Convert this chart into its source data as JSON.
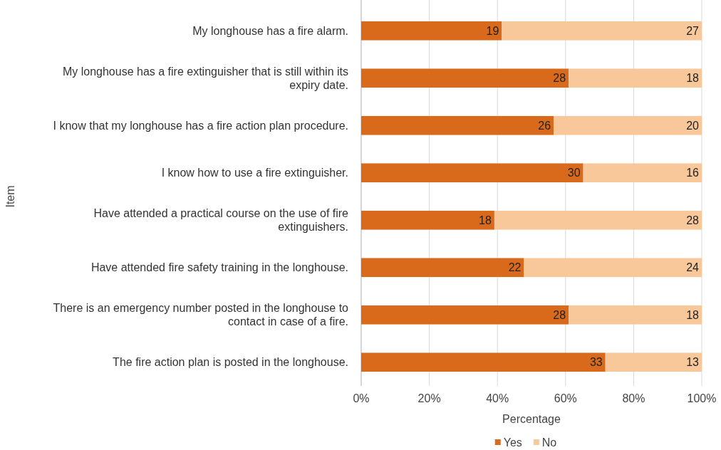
{
  "chart_data": {
    "type": "bar",
    "orientation": "horizontal",
    "stacked": true,
    "xlabel": "Percentage",
    "ylabel": "Item",
    "categories": [
      "My longhouse has a fire alarm.",
      "My longhouse has a fire extinguisher that is still within its expiry date.",
      "I know that my longhouse has a fire action plan procedure.",
      "I know how to use a fire extinguisher.",
      "Have attended a practical course on the use of fire extinguishers.",
      "Have attended fire safety training in the longhouse.",
      "There is an emergency number posted in the longhouse to contact in case of a fire.",
      "The fire action plan is posted in the longhouse."
    ],
    "series": [
      {
        "name": "Yes",
        "color": "#d9691b",
        "values": [
          41.3,
          60.9,
          56.5,
          65.2,
          39.1,
          47.8,
          60.9,
          71.7
        ]
      },
      {
        "name": "No",
        "color": "#f8c79a",
        "values": [
          58.7,
          39.1,
          43.5,
          34.8,
          60.9,
          52.2,
          39.1,
          28.3
        ]
      }
    ],
    "annotations": [
      {
        "text": "19",
        "x": 41.3,
        "y": "My longhouse has a fire alarm."
      },
      {
        "text": "27",
        "x": 100,
        "y": "My longhouse has a fire alarm."
      },
      {
        "text": "28",
        "x": 60.9,
        "y": "My longhouse has a fire extinguisher that is still within its expiry date."
      },
      {
        "text": "18",
        "x": 100,
        "y": "My longhouse has a fire extinguisher that is still within its expiry date."
      },
      {
        "text": "26",
        "x": 56.5,
        "y": "I know that my longhouse has a fire action plan procedure."
      },
      {
        "text": "20",
        "x": 100,
        "y": "I know that my longhouse has a fire action plan procedure."
      },
      {
        "text": "30",
        "x": 65.2,
        "y": "I know how to use a fire extinguisher."
      },
      {
        "text": "16",
        "x": 100,
        "y": "I know how to use a fire extinguisher."
      },
      {
        "text": "18",
        "x": 39.1,
        "y": "Have attended a practical course on the use of fire extinguishers."
      },
      {
        "text": "28",
        "x": 100,
        "y": "Have attended a practical course on the use of fire extinguishers."
      },
      {
        "text": "22",
        "x": 47.8,
        "y": "Have attended fire safety training in the longhouse."
      },
      {
        "text": "24",
        "x": 100,
        "y": "Have attended fire safety training in the longhouse."
      },
      {
        "text": "28",
        "x": 60.9,
        "y": "There is an emergency number posted in the longhouse to contact in case of a fire."
      },
      {
        "text": "18",
        "x": 100,
        "y": "There is an emergency number posted in the longhouse to contact in case of a fire."
      },
      {
        "text": "33",
        "x": 71.7,
        "y": "The fire action plan is posted in the longhouse."
      },
      {
        "text": "13",
        "x": 100,
        "y": "The fire action plan is posted in the longhouse."
      }
    ],
    "xlim": [
      0,
      100
    ],
    "xticks": [
      {
        "value": 0,
        "label": "0%"
      },
      {
        "value": 20,
        "label": "20%"
      },
      {
        "value": 40,
        "label": "40%"
      },
      {
        "value": 60,
        "label": "60%"
      },
      {
        "value": 80,
        "label": "80%"
      },
      {
        "value": 100,
        "label": "100%"
      }
    ],
    "grid": "x",
    "legend": "bottom"
  }
}
